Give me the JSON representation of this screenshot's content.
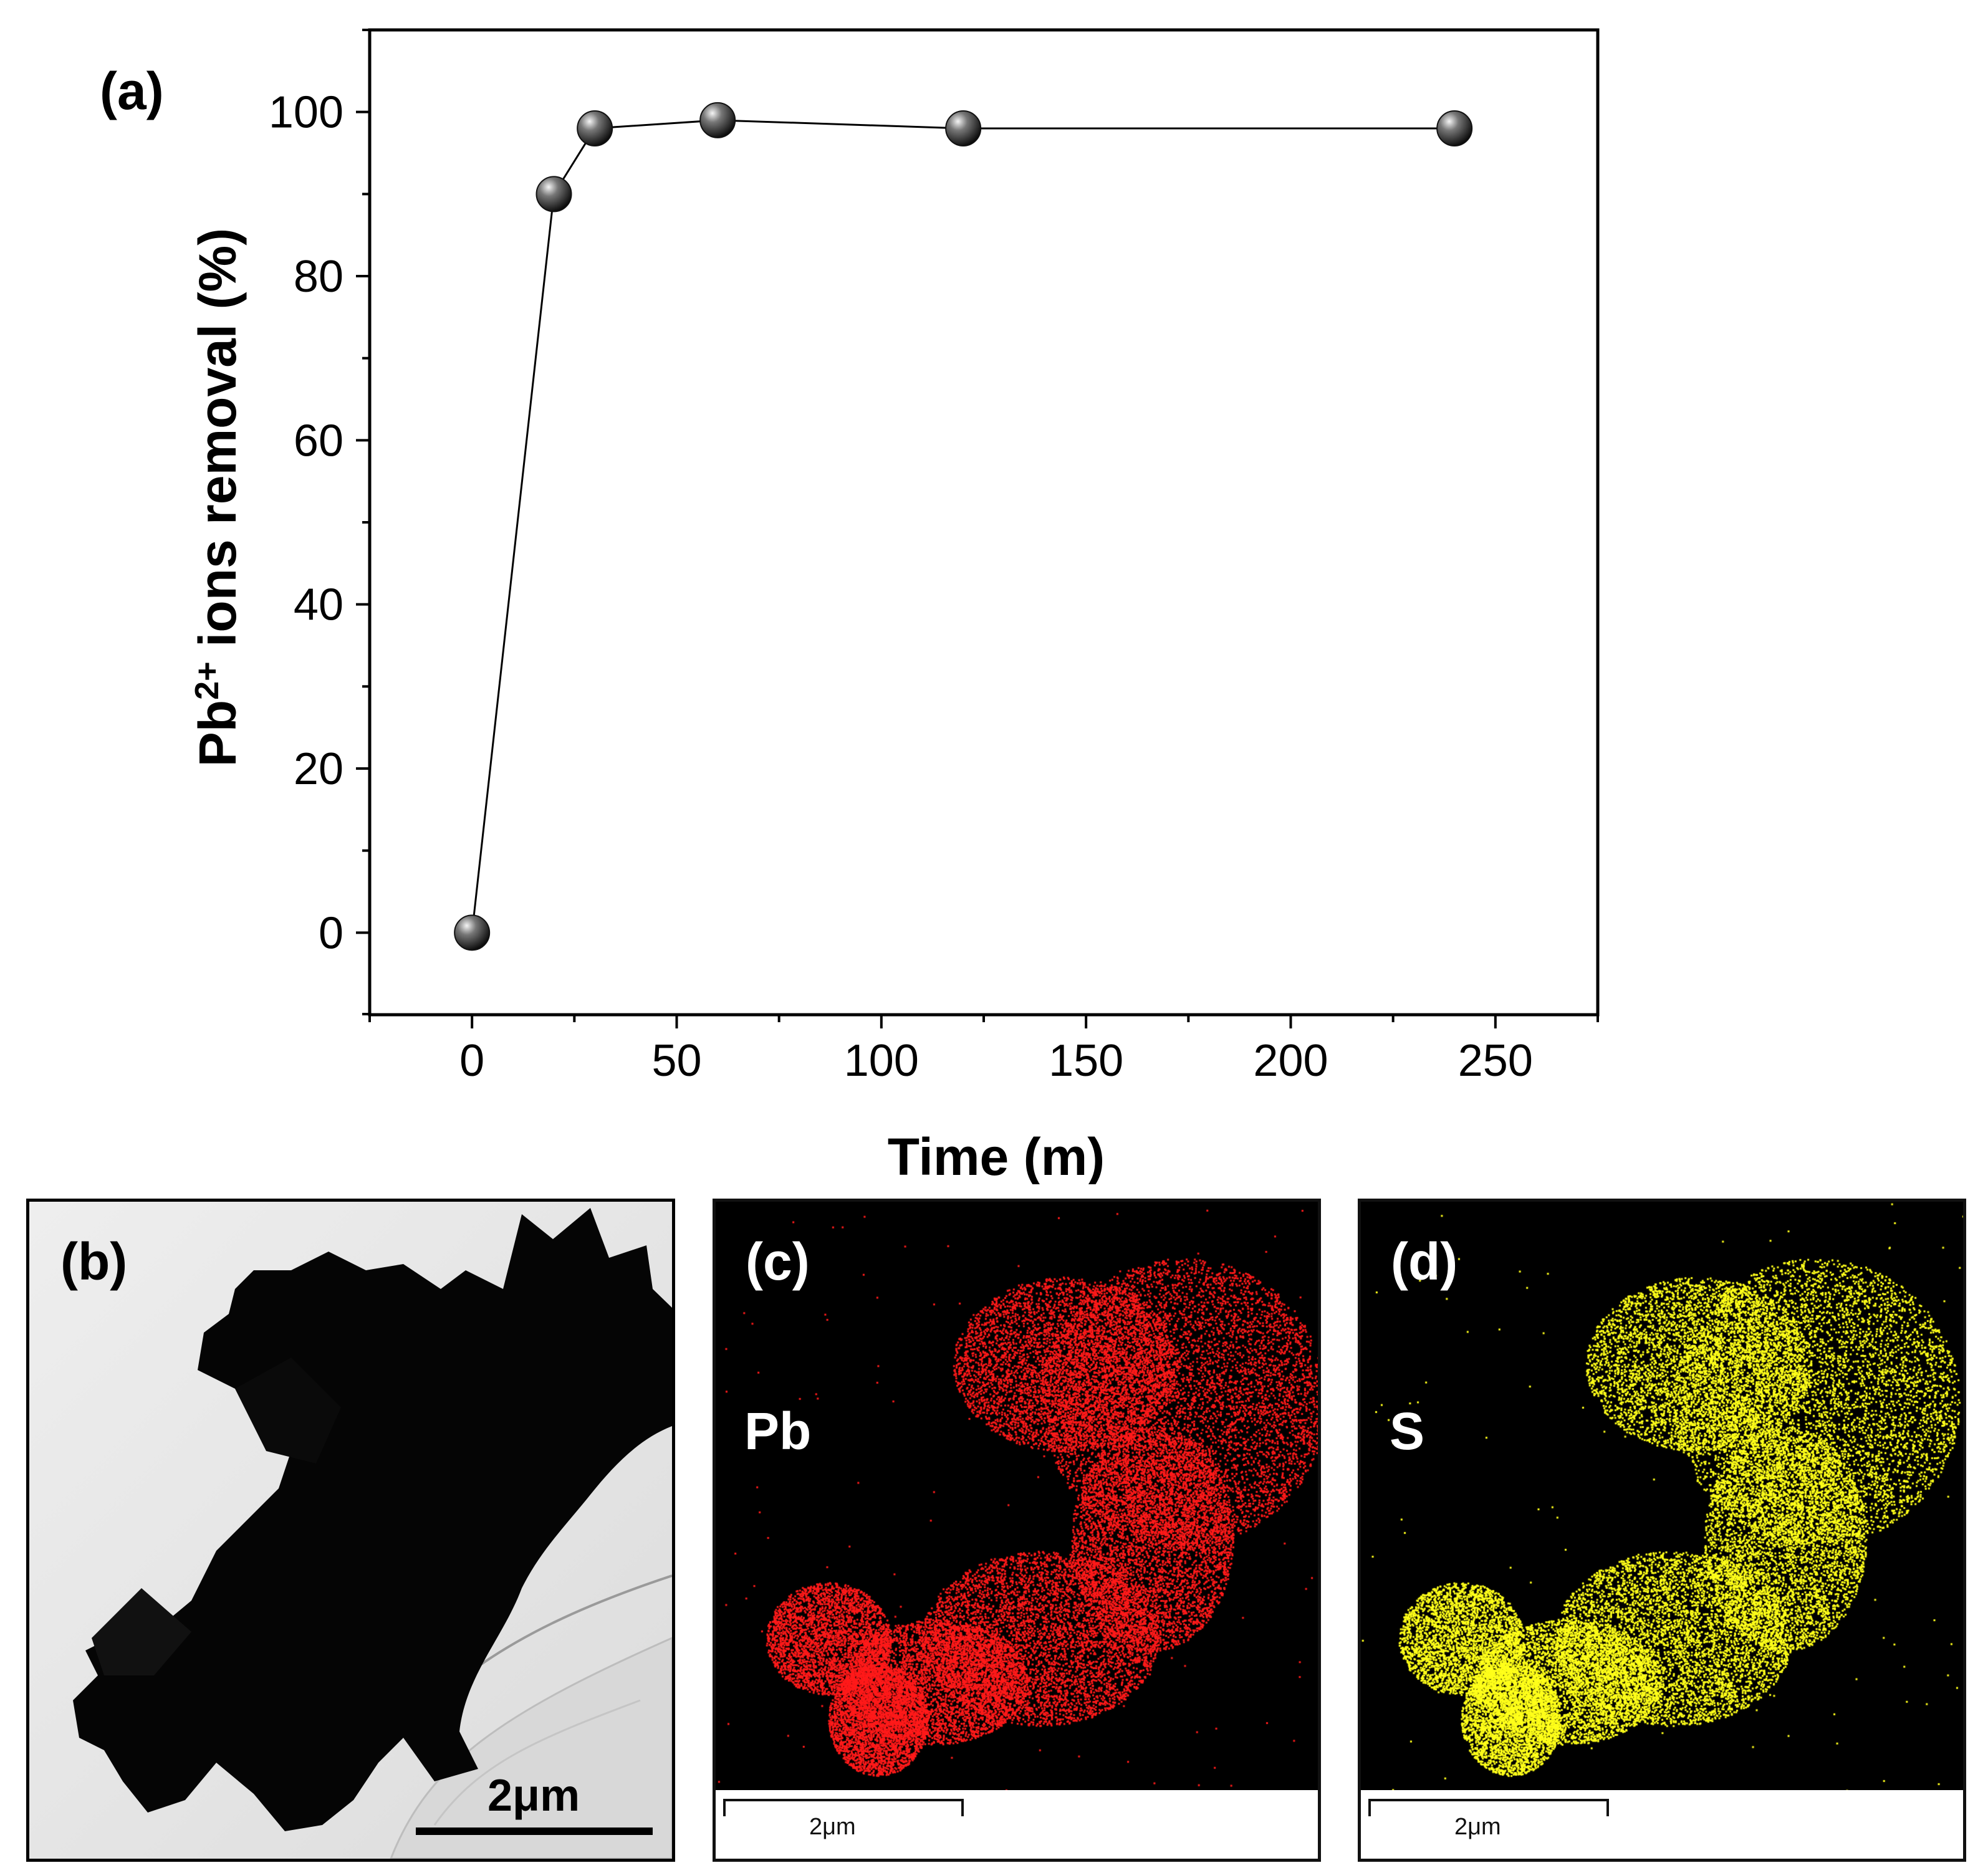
{
  "panel_labels": {
    "a": "(a)",
    "b": "(b)",
    "c": "(c)",
    "d": "(d)"
  },
  "chart_data": {
    "type": "scatter",
    "title": "",
    "xlabel": "Time (m)",
    "ylabel": "Pb2+ ions removal (%)",
    "ylabel_parts": {
      "base": "Pb",
      "sup": "2+",
      "rest": " ions removal (%)"
    },
    "xlim": [
      -25,
      275
    ],
    "ylim": [
      -10,
      110
    ],
    "xticks": [
      0,
      50,
      100,
      150,
      200,
      250
    ],
    "yticks": [
      0,
      20,
      40,
      60,
      80,
      100
    ],
    "grid": false,
    "connected": true,
    "series": [
      {
        "x": [
          0,
          20,
          30,
          60,
          120,
          240
        ],
        "y": [
          0,
          90,
          98,
          99,
          98,
          98
        ]
      }
    ]
  },
  "tem_panel": {
    "scale_label": "2μm"
  },
  "map_c": {
    "element": "Pb",
    "scale_label": "2μm",
    "color": "#ff1a1a"
  },
  "map_d": {
    "element": "S",
    "scale_label": "2μm",
    "color": "#ffff1a"
  },
  "colors": {
    "marker": "#111111",
    "line": "#000000"
  }
}
